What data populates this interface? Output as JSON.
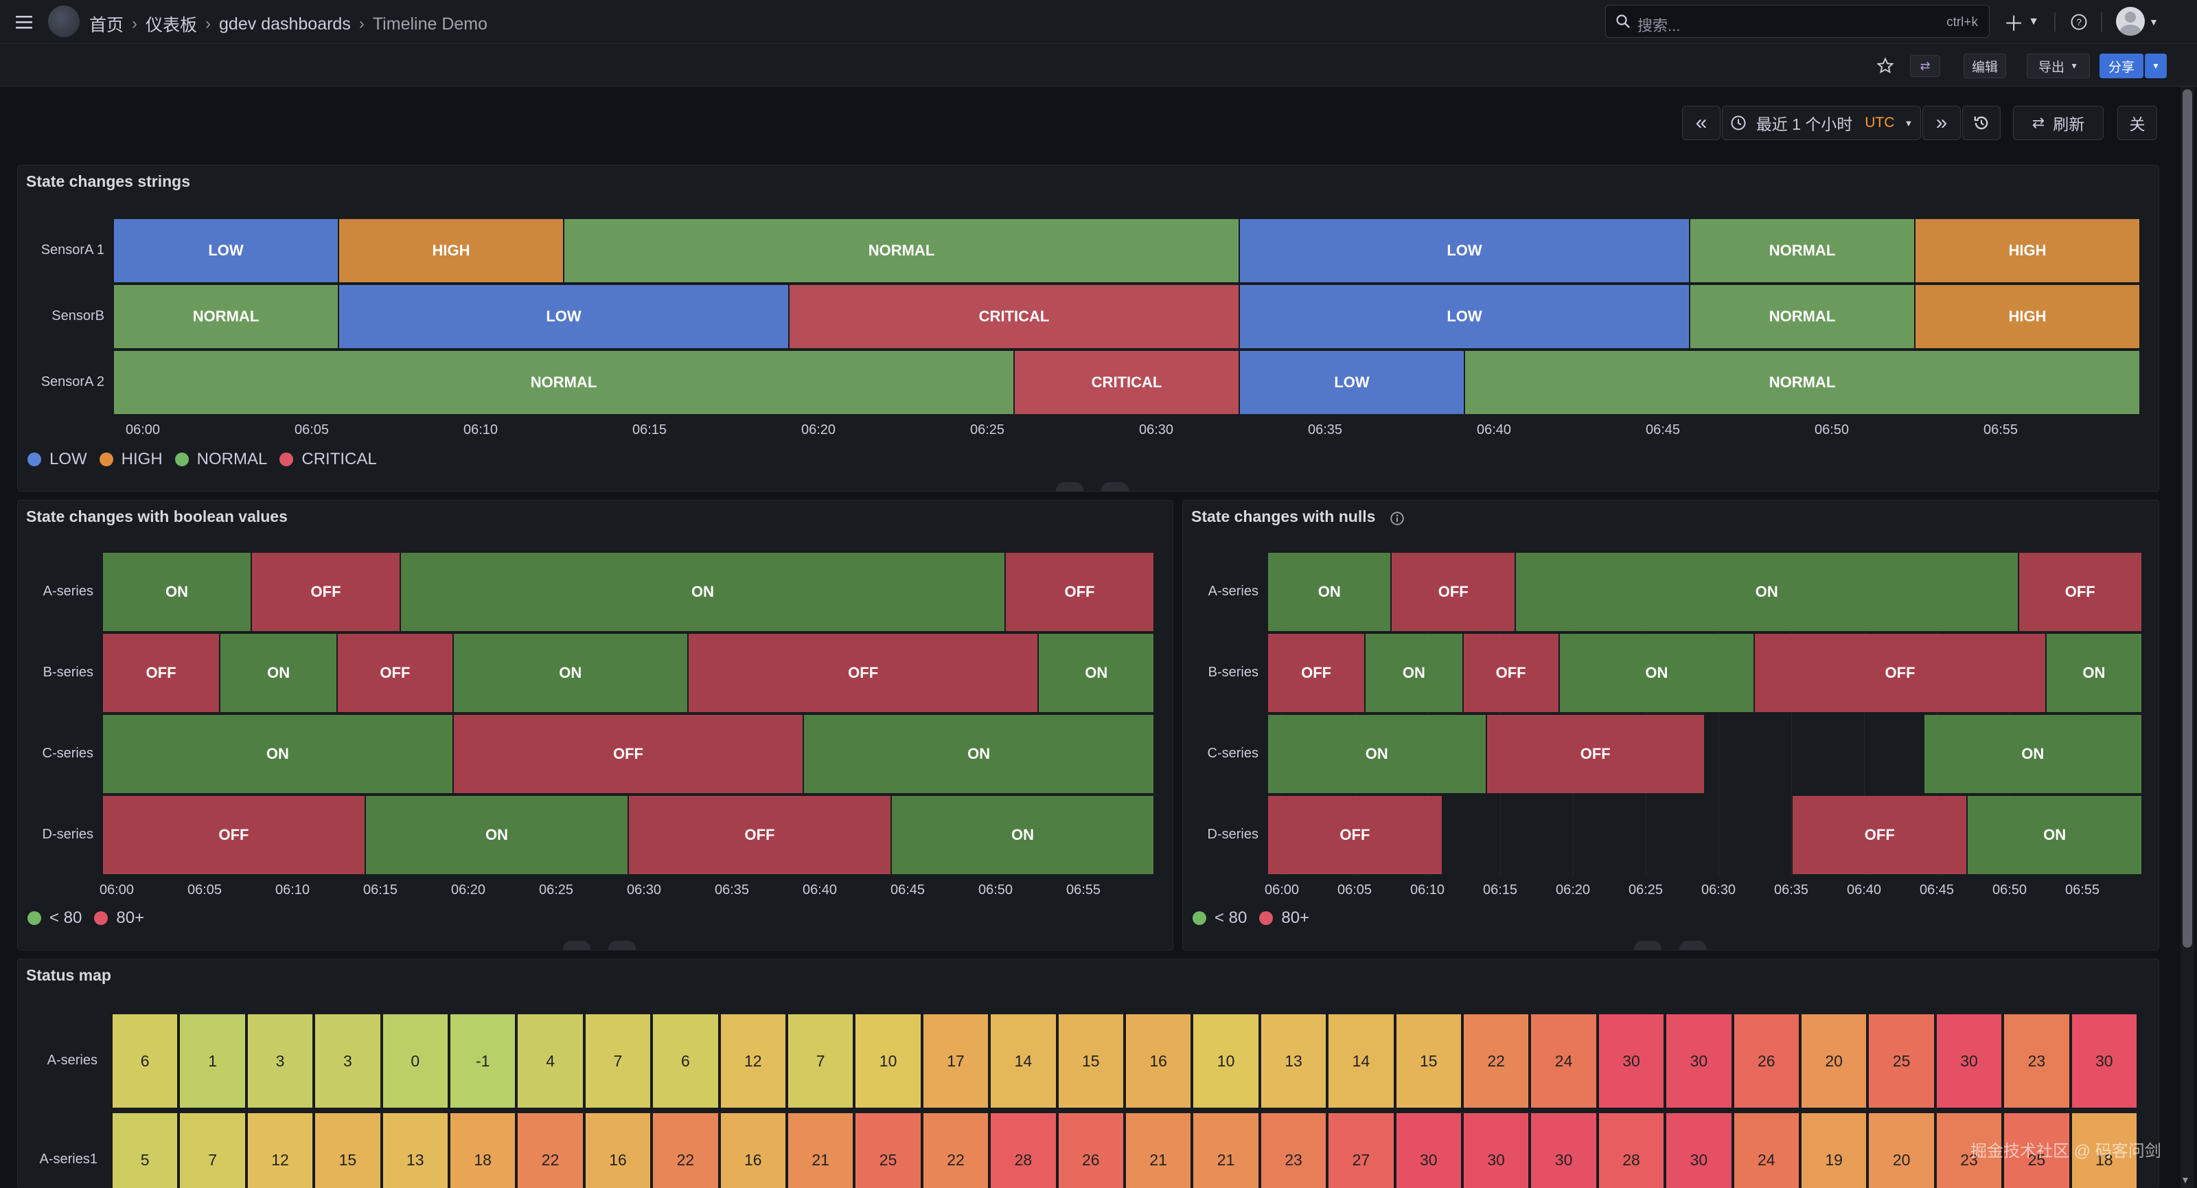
{
  "breadcrumb": [
    "首页",
    "仪表板",
    "gdev dashboards",
    "Timeline Demo"
  ],
  "search": {
    "placeholder": "搜索...",
    "shortcut": "ctrl+k"
  },
  "toolbar": {
    "edit": "编辑",
    "export": "导出",
    "share": "分享"
  },
  "time_controls": {
    "range": "最近 1 个小时",
    "timezone": "UTC",
    "refresh": "刷新",
    "close": "关"
  },
  "colors": {
    "low": "#5478c9",
    "high": "#cd883e",
    "normal": "#6b9b5c",
    "critical": "#b64d57",
    "on": "#4f7f43",
    "off": "#a63f4c",
    "dot_green": "#72b865",
    "dot_red": "#e05567"
  },
  "panels": {
    "strings": {
      "title": "State changes strings",
      "ticks": [
        "06:00",
        "06:05",
        "06:10",
        "06:15",
        "06:20",
        "06:25",
        "06:30",
        "06:35",
        "06:40",
        "06:45",
        "06:50",
        "06:55"
      ],
      "legend": [
        {
          "label": "LOW",
          "color": "#5b82d9"
        },
        {
          "label": "HIGH",
          "color": "#e08d3c"
        },
        {
          "label": "NORMAL",
          "color": "#72b865"
        },
        {
          "label": "CRITICAL",
          "color": "#e05567"
        }
      ],
      "rows": [
        {
          "label": "SensorA 1",
          "segments": [
            {
              "start": 0,
              "end": 10,
              "state": "LOW"
            },
            {
              "start": 10,
              "end": 20,
              "state": "HIGH"
            },
            {
              "start": 20,
              "end": 50,
              "state": "NORMAL"
            },
            {
              "start": 50,
              "end": 70,
              "state": "LOW"
            },
            {
              "start": 70,
              "end": 80,
              "state": "NORMAL"
            },
            {
              "start": 80,
              "end": 90,
              "state": "HIGH"
            }
          ]
        },
        {
          "label": "SensorB",
          "segments": [
            {
              "start": 0,
              "end": 10,
              "state": "NORMAL"
            },
            {
              "start": 10,
              "end": 30,
              "state": "LOW"
            },
            {
              "start": 30,
              "end": 50,
              "state": "CRITICAL"
            },
            {
              "start": 50,
              "end": 70,
              "state": "LOW"
            },
            {
              "start": 70,
              "end": 80,
              "state": "NORMAL"
            },
            {
              "start": 80,
              "end": 90,
              "state": "HIGH"
            }
          ]
        },
        {
          "label": "SensorA 2",
          "segments": [
            {
              "start": 0,
              "end": 40,
              "state": "NORMAL"
            },
            {
              "start": 40,
              "end": 50,
              "state": "CRITICAL"
            },
            {
              "start": 50,
              "end": 60,
              "state": "LOW"
            },
            {
              "start": 60,
              "end": 90,
              "state": "NORMAL"
            }
          ]
        }
      ]
    },
    "boolean": {
      "title": "State changes with boolean values",
      "ticks": [
        "06:00",
        "06:05",
        "06:10",
        "06:15",
        "06:20",
        "06:25",
        "06:30",
        "06:35",
        "06:40",
        "06:45",
        "06:50",
        "06:55"
      ],
      "legend": [
        {
          "label": "< 80",
          "color": "#72b865"
        },
        {
          "label": "80+",
          "color": "#e05567"
        }
      ],
      "rows": [
        {
          "label": "A-series",
          "segments": [
            {
              "start": 0,
              "end": 8.5,
              "state": "ON"
            },
            {
              "start": 8.5,
              "end": 17,
              "state": "OFF"
            },
            {
              "start": 17,
              "end": 51.5,
              "state": "ON"
            },
            {
              "start": 51.5,
              "end": 60,
              "state": "OFF"
            }
          ]
        },
        {
          "label": "B-series",
          "segments": [
            {
              "start": 0,
              "end": 6.7,
              "state": "OFF"
            },
            {
              "start": 6.7,
              "end": 13.4,
              "state": "ON"
            },
            {
              "start": 13.4,
              "end": 20,
              "state": "OFF"
            },
            {
              "start": 20,
              "end": 33.4,
              "state": "ON"
            },
            {
              "start": 33.4,
              "end": 53.4,
              "state": "OFF"
            },
            {
              "start": 53.4,
              "end": 60,
              "state": "ON"
            }
          ]
        },
        {
          "label": "C-series",
          "segments": [
            {
              "start": 0,
              "end": 20,
              "state": "ON"
            },
            {
              "start": 20,
              "end": 40,
              "state": "OFF"
            },
            {
              "start": 40,
              "end": 60,
              "state": "ON"
            }
          ]
        },
        {
          "label": "D-series",
          "segments": [
            {
              "start": 0,
              "end": 15,
              "state": "OFF"
            },
            {
              "start": 15,
              "end": 30,
              "state": "ON"
            },
            {
              "start": 30,
              "end": 45,
              "state": "OFF"
            },
            {
              "start": 45,
              "end": 60,
              "state": "ON"
            }
          ]
        }
      ]
    },
    "nulls": {
      "title": "State changes with nulls",
      "ticks": [
        "06:00",
        "06:05",
        "06:10",
        "06:15",
        "06:20",
        "06:25",
        "06:30",
        "06:35",
        "06:40",
        "06:45",
        "06:50",
        "06:55"
      ],
      "legend": [
        {
          "label": "< 80",
          "color": "#72b865"
        },
        {
          "label": "80+",
          "color": "#e05567"
        }
      ],
      "rows": [
        {
          "label": "A-series",
          "segments": [
            {
              "start": 0,
              "end": 8.5,
              "state": "ON"
            },
            {
              "start": 8.5,
              "end": 17,
              "state": "OFF"
            },
            {
              "start": 17,
              "end": 51.5,
              "state": "ON"
            },
            {
              "start": 51.5,
              "end": 60,
              "state": "OFF"
            }
          ]
        },
        {
          "label": "B-series",
          "segments": [
            {
              "start": 0,
              "end": 6.7,
              "state": "OFF"
            },
            {
              "start": 6.7,
              "end": 13.4,
              "state": "ON"
            },
            {
              "start": 13.4,
              "end": 20,
              "state": "OFF"
            },
            {
              "start": 20,
              "end": 33.4,
              "state": "ON"
            },
            {
              "start": 33.4,
              "end": 53.4,
              "state": "OFF"
            },
            {
              "start": 53.4,
              "end": 60,
              "state": "ON"
            }
          ]
        },
        {
          "label": "C-series",
          "segments": [
            {
              "start": 0,
              "end": 15,
              "state": "ON"
            },
            {
              "start": 15,
              "end": 30,
              "state": "OFF"
            },
            {
              "start": 45,
              "end": 60,
              "state": "ON"
            }
          ]
        },
        {
          "label": "D-series",
          "segments": [
            {
              "start": 0,
              "end": 12,
              "state": "OFF"
            },
            {
              "start": 36,
              "end": 48,
              "state": "OFF"
            },
            {
              "start": 48,
              "end": 60,
              "state": "ON"
            }
          ]
        }
      ]
    },
    "status": {
      "title": "Status map",
      "rows": [
        {
          "label": "A-series",
          "values": [
            6,
            1,
            3,
            3,
            0,
            -1,
            4,
            7,
            6,
            12,
            7,
            10,
            17,
            14,
            15,
            16,
            10,
            13,
            14,
            15,
            22,
            24,
            30,
            30,
            26,
            20,
            25,
            30,
            23,
            30
          ]
        },
        {
          "label": "A-series1",
          "values": [
            5,
            7,
            12,
            15,
            13,
            18,
            22,
            16,
            22,
            16,
            21,
            25,
            22,
            28,
            26,
            21,
            21,
            23,
            27,
            30,
            30,
            30,
            28,
            30,
            24,
            19,
            20,
            23,
            25,
            18
          ]
        }
      ]
    }
  },
  "watermark": "掘金技术社区 @ 码客问剑"
}
